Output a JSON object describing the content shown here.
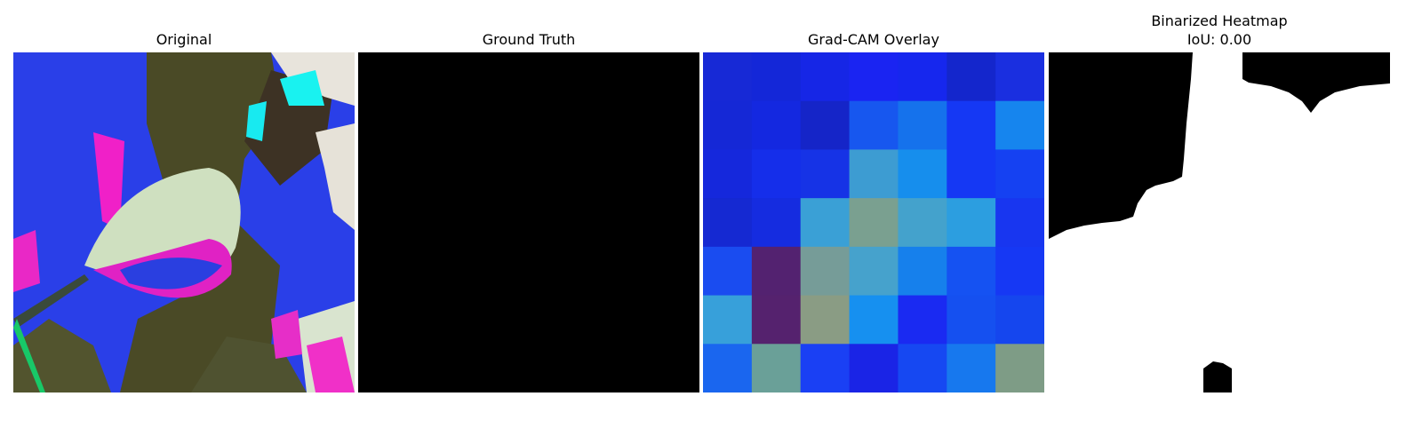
{
  "panels": [
    {
      "title": "Original"
    },
    {
      "title": "Ground Truth"
    },
    {
      "title": "Grad-CAM Overlay"
    },
    {
      "title_line1": "Binarized Heatmap",
      "title_line2": "IoU: 0.00"
    }
  ],
  "gradcam": {
    "grid": [
      [
        "#1729d6",
        "#1427d8",
        "#1626e6",
        "#1a24f2",
        "#1627ee",
        "#1426cc",
        "#1a2fe0"
      ],
      [
        "#1528d6",
        "#1428e0",
        "#1525c8",
        "#1757ef",
        "#1572ec",
        "#1538f4",
        "#1685ee"
      ],
      [
        "#1528dc",
        "#152eea",
        "#1633e6",
        "#3d9cd2",
        "#168eed",
        "#1538f4",
        "#1541f2"
      ],
      [
        "#1529d2",
        "#152ce0",
        "#3aa0d6",
        "#7aa090",
        "#44a2cc",
        "#2c9ee0",
        "#1836f0"
      ],
      [
        "#1a4cf0",
        "#532270",
        "#769c98",
        "#46a2cc",
        "#1680ec",
        "#1552f2",
        "#1638f4"
      ],
      [
        "#37a0da",
        "#55226e",
        "#8a9c84",
        "#1690f0",
        "#1a2af2",
        "#1550f0",
        "#1546ee"
      ],
      [
        "#1a66ef",
        "#6aa098",
        "#1a40f4",
        "#1a24e6",
        "#1648f2",
        "#1778ee",
        "#7e9c86"
      ]
    ]
  }
}
